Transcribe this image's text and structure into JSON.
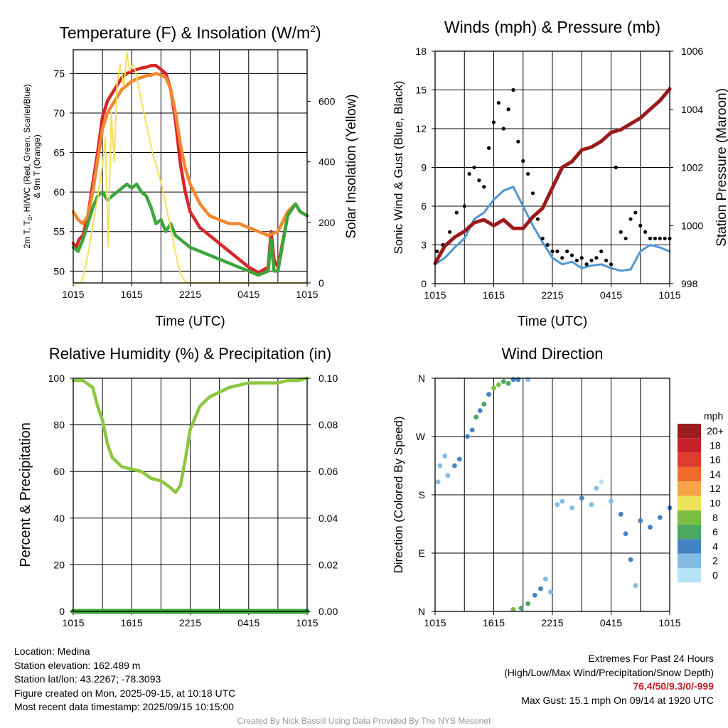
{
  "x_ticks": [
    "1015",
    "1615",
    "2215",
    "0415",
    "1015"
  ],
  "chart_data": [
    {
      "panel": "temperature",
      "type": "line",
      "title": "Temperature (F) & Insolation (W/m²)",
      "title_base": "Temperature (F) & Insolation (W/m",
      "title_sup": "2",
      "title_end": ")",
      "xlabel": "Time (UTC)",
      "ylabel": "2m T, Td, HI/WC (Red, Green, Scarlet/Blue) & 9m T (Orange)",
      "ylabel_line1_a": "2m T, T",
      "ylabel_line1_sub": "d",
      "ylabel_line1_b": ", HI/WC (Red, Green, Scarlet/Blue)",
      "ylabel_line2": "& 9m T (Orange)",
      "y2label": "Solar Insolation (Yellow)",
      "ylim": [
        48.5,
        78
      ],
      "yticks": [
        50,
        55,
        60,
        65,
        70,
        75
      ],
      "y2lim": [
        0,
        770
      ],
      "y2ticks": [
        0,
        200,
        400,
        600
      ],
      "x_hours": [
        0,
        24
      ],
      "series": [
        {
          "name": "2m T",
          "color": "#d7262a",
          "x": [
            0,
            0.3,
            0.6,
            1.0,
            1.5,
            2.0,
            2.5,
            3.0,
            3.5,
            4.0,
            4.5,
            5.0,
            5.5,
            6.0,
            6.5,
            7.0,
            7.5,
            8.0,
            8.5,
            9.0,
            9.5,
            10.0,
            10.5,
            11.0,
            11.5,
            12.0,
            13.0,
            14.0,
            15.0,
            16.0,
            17.0,
            18.0,
            19.0,
            20.0,
            20.3,
            20.6,
            21.0,
            22.0,
            22.8,
            23.3,
            24.0
          ],
          "y": [
            53.5,
            53.0,
            54.0,
            54.5,
            57.0,
            61.0,
            65.0,
            69.5,
            71.5,
            72.5,
            73.5,
            74.5,
            75.0,
            75.3,
            75.5,
            75.7,
            75.8,
            76.0,
            76.0,
            75.5,
            75.0,
            73.0,
            69.0,
            63.5,
            60.0,
            57.5,
            55.5,
            54.5,
            53.5,
            52.5,
            51.5,
            50.5,
            49.8,
            50.5,
            55.0,
            51.5,
            50.5,
            57.0,
            58.5,
            57.5,
            57.0
          ]
        },
        {
          "name": "9m T",
          "color": "#f5862e",
          "x": [
            0,
            0.5,
            1.0,
            1.5,
            2.0,
            2.5,
            3.0,
            3.5,
            4.0,
            4.5,
            5.0,
            5.5,
            6.0,
            6.5,
            7.0,
            7.5,
            8.0,
            8.5,
            9.0,
            9.5,
            10.0,
            10.5,
            11.0,
            11.5,
            12.0,
            13.0,
            14.0,
            15.0,
            16.0,
            17.0,
            18.0,
            19.0,
            20.0,
            21.0,
            22.0,
            22.8,
            23.3,
            24.0
          ],
          "y": [
            57.5,
            56.5,
            56.0,
            57.0,
            60.0,
            64.0,
            68.0,
            70.0,
            71.0,
            72.0,
            73.0,
            73.5,
            74.0,
            74.3,
            74.5,
            74.7,
            74.8,
            75.0,
            74.8,
            74.5,
            73.0,
            70.0,
            66.0,
            63.0,
            61.0,
            58.5,
            57.0,
            56.5,
            56.0,
            56.0,
            55.5,
            55.0,
            54.5,
            55.0,
            57.5,
            58.5,
            57.5,
            57.0
          ]
        },
        {
          "name": "Td",
          "color": "#3da53b",
          "x": [
            0,
            0.5,
            1.0,
            1.5,
            2.0,
            2.5,
            3.0,
            3.5,
            4.0,
            4.5,
            5.0,
            5.5,
            6.0,
            6.5,
            7.0,
            7.5,
            8.0,
            8.5,
            9.0,
            9.5,
            10.0,
            10.5,
            11.0,
            11.5,
            12.0,
            13.0,
            14.0,
            15.0,
            16.0,
            17.0,
            18.0,
            19.0,
            20.0,
            20.3,
            20.6,
            21.0,
            22.0,
            22.8,
            23.3,
            24.0
          ],
          "y": [
            53.0,
            52.5,
            54.0,
            56.0,
            58.0,
            59.5,
            60.0,
            59.0,
            59.5,
            60.0,
            60.5,
            61.0,
            60.5,
            61.0,
            60.0,
            59.5,
            58.0,
            56.0,
            56.5,
            55.0,
            56.0,
            54.5,
            54.0,
            53.5,
            53.0,
            52.5,
            52.0,
            51.5,
            51.0,
            50.5,
            50.0,
            49.5,
            50.0,
            54.0,
            50.0,
            50.0,
            57.0,
            58.5,
            57.5,
            57.0
          ]
        },
        {
          "name": "Solar Insolation",
          "color": "#f6e05a",
          "axis": "y2",
          "x": [
            0,
            0.8,
            1.0,
            1.3,
            1.6,
            2.0,
            2.5,
            3.0,
            3.3,
            3.6,
            3.9,
            4.2,
            4.5,
            4.8,
            5.2,
            5.5,
            5.8,
            6.1,
            6.4,
            6.7,
            7.0,
            7.4,
            7.8,
            8.2,
            8.6,
            9.0,
            9.5,
            10.0,
            10.5,
            11.0,
            11.5,
            12.0,
            24.0
          ],
          "y": [
            0,
            0,
            20,
            60,
            110,
            190,
            280,
            390,
            480,
            120,
            560,
            400,
            660,
            720,
            650,
            760,
            700,
            720,
            700,
            650,
            600,
            540,
            480,
            420,
            380,
            330,
            260,
            180,
            100,
            30,
            5,
            0,
            0
          ]
        }
      ]
    },
    {
      "panel": "winds",
      "type": "scatter",
      "title": "Winds (mph) & Pressure (mb)",
      "xlabel": "Time (UTC)",
      "ylabel": "Sonic Wind & Gust (Blue, Black)",
      "y2label": "Station Pressure (Maroon)",
      "ylim": [
        0,
        18
      ],
      "yticks": [
        0,
        3,
        6,
        9,
        12,
        15,
        18
      ],
      "y2lim": [
        998,
        1006
      ],
      "y2ticks": [
        998,
        1000,
        1002,
        1004,
        1006
      ],
      "x_hours": [
        0,
        24
      ],
      "series": [
        {
          "name": "Sonic Wind",
          "color": "#4f97d3",
          "x": [
            0,
            1,
            2,
            3,
            4,
            5,
            6,
            7,
            8,
            9,
            10,
            11,
            12,
            13,
            14,
            15,
            16,
            17,
            18,
            19,
            20,
            21,
            22,
            23,
            24
          ],
          "y": [
            1.5,
            2.0,
            2.8,
            3.5,
            5.0,
            5.5,
            6.5,
            7.2,
            7.5,
            6.0,
            4.5,
            3.2,
            2.0,
            1.5,
            1.7,
            1.2,
            1.4,
            1.5,
            1.2,
            1.0,
            1.1,
            2.5,
            3.0,
            2.8,
            2.5
          ]
        },
        {
          "name": "Gust",
          "color": "#000000",
          "x": [
            0.2,
            0.8,
            1.5,
            2.2,
            3.0,
            3.5,
            4.0,
            4.5,
            5.0,
            5.5,
            6.0,
            6.5,
            7.0,
            7.5,
            8.0,
            8.5,
            9.0,
            9.5,
            10.0,
            10.5,
            11.0,
            11.5,
            12.0,
            12.5,
            13.0,
            13.5,
            14.0,
            14.5,
            15.0,
            15.5,
            16.0,
            16.5,
            17.0,
            17.5,
            18.0,
            18.5,
            19.0,
            19.5,
            20.0,
            20.5,
            21.0,
            21.5,
            22.0,
            22.5,
            23.0,
            23.5,
            24.0
          ],
          "y": [
            2.5,
            3.0,
            4.0,
            5.5,
            6.0,
            8.5,
            9.0,
            8.0,
            7.5,
            10.5,
            12.5,
            14.0,
            12.0,
            13.5,
            15.0,
            11.0,
            9.5,
            8.5,
            7.0,
            5.0,
            3.5,
            3.0,
            2.5,
            2.5,
            2.0,
            2.5,
            2.2,
            1.8,
            2.0,
            1.5,
            1.8,
            2.0,
            2.5,
            1.8,
            1.5,
            9.0,
            4.0,
            3.5,
            5.0,
            5.5,
            4.5,
            4.0,
            3.5,
            3.5,
            3.5,
            3.5,
            3.5
          ]
        },
        {
          "name": "Station Pressure",
          "color": "#9a1a1a",
          "axis": "y2",
          "x": [
            0,
            1,
            2,
            3,
            4,
            5,
            6,
            7,
            8,
            9,
            10,
            11,
            12,
            13,
            14,
            15,
            16,
            17,
            18,
            19,
            20,
            21,
            22,
            23,
            24
          ],
          "y": [
            998.7,
            999.3,
            999.6,
            999.8,
            1000.1,
            1000.2,
            1000.0,
            1000.2,
            999.9,
            999.9,
            1000.3,
            1000.6,
            1001.3,
            1002.0,
            1002.2,
            1002.6,
            1002.7,
            1002.9,
            1003.2,
            1003.3,
            1003.5,
            1003.7,
            1004.0,
            1004.3,
            1004.7
          ]
        }
      ]
    },
    {
      "panel": "humidity",
      "type": "line",
      "title": "Relative Humidity (%) & Precipitation (in)",
      "xlabel": "",
      "ylabel": "Percent & Precipitation",
      "ylim": [
        0,
        100
      ],
      "yticks": [
        0,
        20,
        40,
        60,
        80,
        100
      ],
      "y2lim": [
        0,
        0.1
      ],
      "y2ticks": [
        "0.00",
        "0.02",
        "0.04",
        "0.06",
        "0.08",
        "0.10"
      ],
      "x_hours": [
        0,
        24
      ],
      "series": [
        {
          "name": "Relative Humidity",
          "color": "#8cc63f",
          "x": [
            0,
            1,
            2,
            2.5,
            3,
            3.5,
            4,
            5,
            6,
            7,
            8,
            9,
            10,
            10.5,
            11,
            11.5,
            12,
            13,
            14,
            15,
            16,
            17,
            18,
            19,
            20,
            21,
            22,
            23,
            24
          ],
          "y": [
            99,
            99,
            96,
            88,
            82,
            72,
            66,
            62,
            61,
            60,
            57,
            56,
            53,
            51,
            54,
            65,
            78,
            88,
            92,
            94,
            96,
            97,
            98,
            98,
            98,
            98,
            99,
            99,
            100
          ]
        },
        {
          "name": "Precipitation",
          "color": "#3da53b",
          "axis": "y2",
          "x": [
            0,
            24
          ],
          "y": [
            0,
            0
          ]
        }
      ]
    },
    {
      "panel": "direction",
      "type": "scatter",
      "title": "Wind Direction",
      "xlabel": "",
      "ylabel": "Direction (Colored By Speed)",
      "yticks": [
        "N",
        "E",
        "S",
        "W",
        "N"
      ],
      "ylim": [
        0,
        360
      ],
      "x_hours": [
        0,
        24
      ],
      "legend_title": "mph",
      "legend_labels": [
        "20+",
        "18",
        "16",
        "14",
        "12",
        "10",
        "8",
        "6",
        "4",
        "2",
        "0"
      ],
      "legend_colors": [
        "#9b1d1e",
        "#c8202a",
        "#e03b2f",
        "#f26b2d",
        "#f7a446",
        "#ece35a",
        "#7cbd43",
        "#4aa861",
        "#4582c4",
        "#83bbe3",
        "#b7e3f7"
      ],
      "points": [
        {
          "h": 0.3,
          "dir": 200,
          "spd": 1
        },
        {
          "h": 0.5,
          "dir": 225,
          "spd": 2
        },
        {
          "h": 1.0,
          "dir": 240,
          "spd": 2
        },
        {
          "h": 1.3,
          "dir": 210,
          "spd": 1
        },
        {
          "h": 2.0,
          "dir": 225,
          "spd": 3
        },
        {
          "h": 2.5,
          "dir": 235,
          "spd": 3
        },
        {
          "h": 3.3,
          "dir": 270,
          "spd": 4
        },
        {
          "h": 3.8,
          "dir": 280,
          "spd": 4
        },
        {
          "h": 4.2,
          "dir": 300,
          "spd": 5
        },
        {
          "h": 4.6,
          "dir": 310,
          "spd": 4
        },
        {
          "h": 5.0,
          "dir": 320,
          "spd": 6
        },
        {
          "h": 5.5,
          "dir": 335,
          "spd": 4
        },
        {
          "h": 6.0,
          "dir": 345,
          "spd": 7
        },
        {
          "h": 6.5,
          "dir": 350,
          "spd": 8
        },
        {
          "h": 7.0,
          "dir": 355,
          "spd": 6
        },
        {
          "h": 7.5,
          "dir": 352,
          "spd": 5
        },
        {
          "h": 8.0,
          "dir": 358,
          "spd": 4
        },
        {
          "h": 8.5,
          "dir": 358,
          "spd": 3
        },
        {
          "h": 9.5,
          "dir": 358,
          "spd": 2
        },
        {
          "h": 8.0,
          "dir": 3,
          "spd": 7
        },
        {
          "h": 8.8,
          "dir": 5,
          "spd": 6
        },
        {
          "h": 9.5,
          "dir": 12,
          "spd": 6
        },
        {
          "h": 10.2,
          "dir": 25,
          "spd": 4
        },
        {
          "h": 10.8,
          "dir": 35,
          "spd": 3
        },
        {
          "h": 11.3,
          "dir": 50,
          "spd": 2
        },
        {
          "h": 11.8,
          "dir": 30,
          "spd": 2
        },
        {
          "h": 12.5,
          "dir": 165,
          "spd": 2
        },
        {
          "h": 13.0,
          "dir": 170,
          "spd": 1
        },
        {
          "h": 14.0,
          "dir": 160,
          "spd": 2
        },
        {
          "h": 15.0,
          "dir": 175,
          "spd": 3
        },
        {
          "h": 16.0,
          "dir": 165,
          "spd": 2
        },
        {
          "h": 16.5,
          "dir": 190,
          "spd": 1
        },
        {
          "h": 17.0,
          "dir": 200,
          "spd": 0
        },
        {
          "h": 18.0,
          "dir": 170,
          "spd": 1
        },
        {
          "h": 19.0,
          "dir": 150,
          "spd": 3
        },
        {
          "h": 19.5,
          "dir": 120,
          "spd": 3
        },
        {
          "h": 20.0,
          "dir": 80,
          "spd": 3
        },
        {
          "h": 20.5,
          "dir": 40,
          "spd": 2
        },
        {
          "h": 21.0,
          "dir": 140,
          "spd": 4
        },
        {
          "h": 22.0,
          "dir": 130,
          "spd": 4
        },
        {
          "h": 23.0,
          "dir": 145,
          "spd": 3
        },
        {
          "h": 24.0,
          "dir": 160,
          "spd": 3
        }
      ]
    }
  ],
  "info": {
    "location": "Location: Medina",
    "elevation": "Station elevation: 162.489 m",
    "latlon": "Station lat/lon: 43.2267; -78.3093",
    "created": "Figure created on Mon, 2025-09-15, at 10:18 UTC",
    "recent": "Most recent data timestamp: 2025/09/15 10:15:00"
  },
  "extremes": {
    "title": "Extremes For Past 24 Hours",
    "subtitle": "(High/Low/Max Wind/Precipitation/Snow Depth)",
    "values": "76.4/50/9.3/0/-999",
    "max_gust": "Max Gust: 15.1 mph On 09/14 at 1920 UTC"
  },
  "credit": "Created By Nick Bassill Using Data Provided By The NYS Mesonet",
  "colors": {
    "grid": "#000000",
    "axis": "#000000",
    "extremes_highlight": "#c2202a"
  }
}
